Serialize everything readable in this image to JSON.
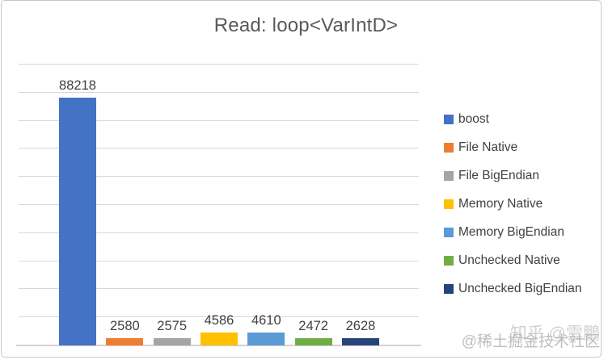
{
  "chart_data": {
    "type": "bar",
    "title": "Read: loop<VarIntD>",
    "categories": [
      "boost",
      "File Native",
      "File BigEndian",
      "Memory Native",
      "Memory BigEndian",
      "Unchecked Native",
      "Unchecked BigEndian"
    ],
    "values": [
      88218,
      2580,
      2575,
      4586,
      4610,
      2472,
      2628
    ],
    "colors": [
      "#4472C4",
      "#ED7D31",
      "#A5A5A5",
      "#FFC000",
      "#5B9BD5",
      "#70AD47",
      "#264478"
    ],
    "ylim": [
      0,
      100000
    ],
    "gridline_interval": 10000,
    "grid": true,
    "legend_position": "right",
    "y_axis_tick_labels": "hidden",
    "x_axis_tick_labels": "hidden",
    "data_labels": "above-bars",
    "title_color": "#595959",
    "data_label_color": "#404040",
    "gridline_color": "#d9d9d9"
  },
  "watermarks": [
    {
      "text": "知乎 @雲鵬"
    },
    {
      "text": "@稀土掘金技术社区"
    }
  ]
}
